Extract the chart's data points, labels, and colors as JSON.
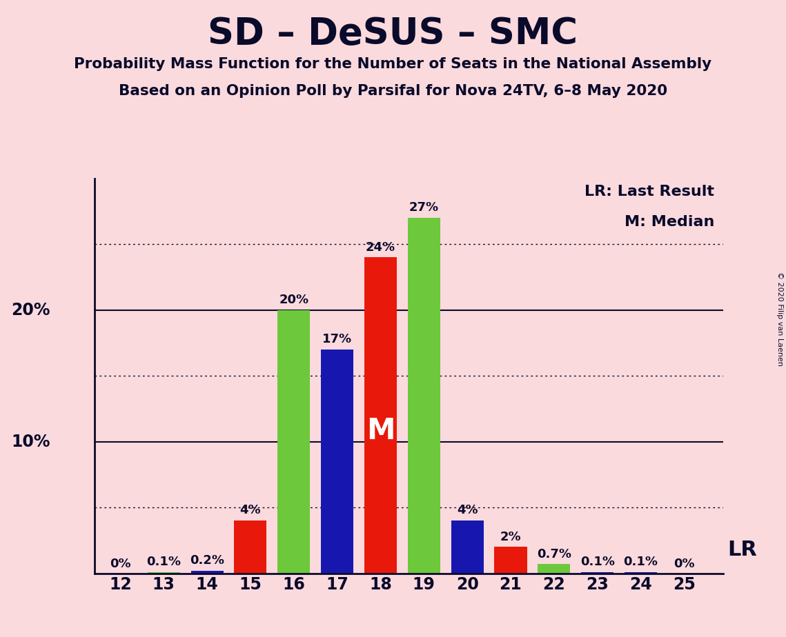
{
  "title": "SD – DeSUS – SMC",
  "subtitle1": "Probability Mass Function for the Number of Seats in the National Assembly",
  "subtitle2": "Based on an Opinion Poll by Parsifal for Nova 24TV, 6–8 May 2020",
  "copyright": "© 2020 Filip van Laenen",
  "seats": [
    12,
    13,
    14,
    15,
    16,
    17,
    18,
    19,
    20,
    21,
    22,
    23,
    24,
    25
  ],
  "values": [
    0.0,
    0.1,
    0.2,
    4.0,
    20.0,
    17.0,
    24.0,
    27.0,
    4.0,
    2.0,
    0.7,
    0.1,
    0.1,
    0.0
  ],
  "colors": [
    "#E8190A",
    "#6DC83C",
    "#1717B0",
    "#E8190A",
    "#6DC83C",
    "#1717B0",
    "#E8190A",
    "#6DC83C",
    "#1717B0",
    "#E8190A",
    "#6DC83C",
    "#1717B0",
    "#1717B0",
    "#E8190A"
  ],
  "labels": [
    "0%",
    "0.1%",
    "0.2%",
    "4%",
    "20%",
    "17%",
    "24%",
    "27%",
    "4%",
    "2%",
    "0.7%",
    "0.1%",
    "0.1%",
    "0%"
  ],
  "median_seat": 18,
  "lr_seat": 25,
  "background_color": "#FADADD",
  "text_color": "#0A0A2A",
  "legend_lr": "LR: Last Result",
  "legend_m": "M: Median",
  "ymax": 30,
  "bar_width": 0.75
}
